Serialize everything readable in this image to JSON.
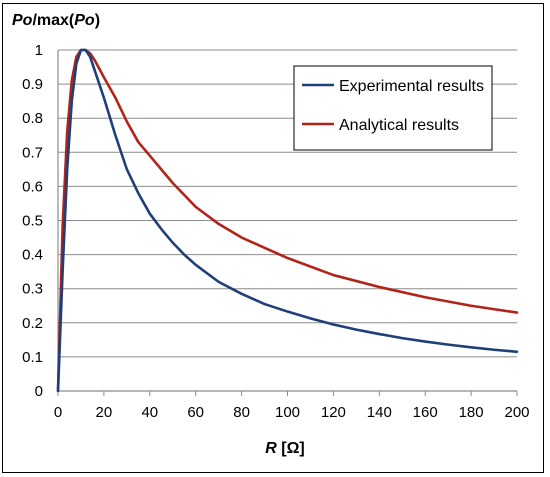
{
  "chart_data": {
    "type": "line",
    "ylabel_parts": [
      {
        "text": "Po",
        "italic": true
      },
      {
        "text": "/max(",
        "italic": false
      },
      {
        "text": "Po",
        "italic": true
      },
      {
        "text": ")",
        "italic": false
      }
    ],
    "xlabel_parts": [
      {
        "text": "R",
        "italic": true
      },
      {
        "text": " [Ω]",
        "italic": false
      }
    ],
    "xlim": [
      0,
      200
    ],
    "ylim": [
      0,
      1
    ],
    "xticks": [
      "0",
      "20",
      "40",
      "60",
      "80",
      "100",
      "120",
      "140",
      "160",
      "180",
      "200"
    ],
    "yticks": [
      "0",
      "0.1",
      "0.2",
      "0.3",
      "0.4",
      "0.5",
      "0.6",
      "0.7",
      "0.8",
      "0.9",
      "1"
    ],
    "grid": "horizontal",
    "legend_position": "top-right",
    "series": [
      {
        "name": "Experimental results",
        "color": "#1f3f7a",
        "x": [
          0,
          2,
          4,
          6,
          8,
          10,
          12,
          14,
          16,
          20,
          25,
          30,
          35,
          40,
          45,
          50,
          55,
          60,
          70,
          80,
          90,
          100,
          110,
          120,
          130,
          140,
          150,
          160,
          170,
          180,
          190,
          200
        ],
        "y": [
          0,
          0.35,
          0.65,
          0.85,
          0.96,
          1.0,
          1.0,
          0.98,
          0.94,
          0.86,
          0.75,
          0.65,
          0.58,
          0.52,
          0.475,
          0.435,
          0.4,
          0.37,
          0.32,
          0.285,
          0.255,
          0.233,
          0.213,
          0.195,
          0.18,
          0.167,
          0.155,
          0.145,
          0.136,
          0.128,
          0.121,
          0.115
        ]
      },
      {
        "name": "Analytical results",
        "color": "#b22418",
        "x": [
          0,
          2,
          4,
          6,
          8,
          10,
          12,
          14,
          16,
          20,
          25,
          30,
          35,
          40,
          50,
          60,
          70,
          80,
          90,
          100,
          120,
          140,
          160,
          180,
          200
        ],
        "y": [
          0,
          0.48,
          0.76,
          0.91,
          0.98,
          1.0,
          1.0,
          0.99,
          0.97,
          0.92,
          0.86,
          0.79,
          0.73,
          0.69,
          0.61,
          0.54,
          0.49,
          0.45,
          0.42,
          0.39,
          0.34,
          0.305,
          0.275,
          0.25,
          0.23
        ]
      }
    ]
  }
}
